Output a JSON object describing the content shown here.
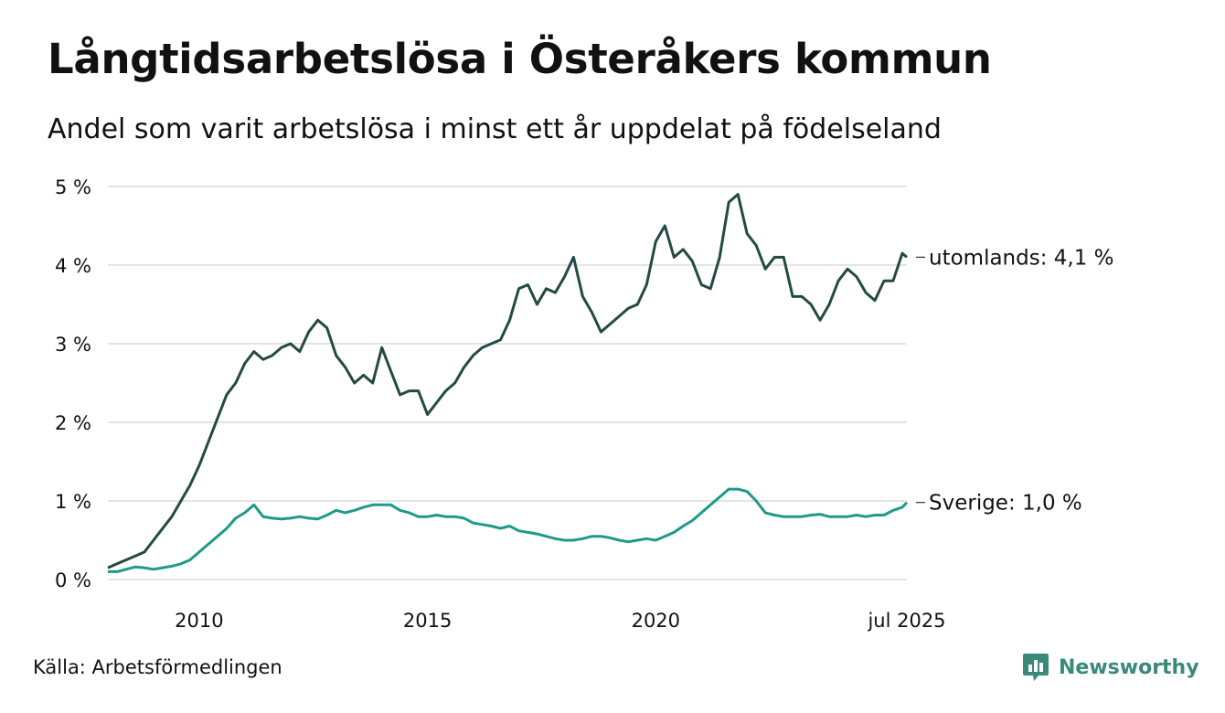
{
  "title": "Långtidsarbetslösa i Österåkers kommun",
  "subtitle": "Andel som varit arbetslösa i minst ett år uppdelat på födelseland",
  "source": "Källa: Arbetsförmedlingen",
  "brand": {
    "name": "Newsworthy",
    "logo_icon": "bar-chart-speech-bubble-icon",
    "color": "#3a8a7c"
  },
  "chart_data": {
    "type": "line",
    "x_unit": "year",
    "xlim": [
      2008.0,
      2025.5
    ],
    "ylim": [
      0,
      5
    ],
    "y_ticks": [
      0,
      1,
      2,
      3,
      4,
      5
    ],
    "y_tick_labels": [
      "0 %",
      "1 %",
      "2 %",
      "3 %",
      "4 %",
      "5 %"
    ],
    "x_ticks": [
      2010,
      2015,
      2020,
      2025.5
    ],
    "x_tick_labels": [
      "2010",
      "2015",
      "2020",
      "jul 2025"
    ],
    "grid": true,
    "series": [
      {
        "name": "utomlands",
        "end_label": "utomlands: 4,1 %",
        "color": "#234a44",
        "x": [
          2008.0,
          2008.2,
          2008.4,
          2008.6,
          2008.8,
          2009.0,
          2009.2,
          2009.4,
          2009.6,
          2009.8,
          2010.0,
          2010.2,
          2010.4,
          2010.6,
          2010.8,
          2011.0,
          2011.2,
          2011.4,
          2011.6,
          2011.8,
          2012.0,
          2012.2,
          2012.4,
          2012.6,
          2012.8,
          2013.0,
          2013.2,
          2013.4,
          2013.6,
          2013.8,
          2014.0,
          2014.2,
          2014.4,
          2014.6,
          2014.8,
          2015.0,
          2015.2,
          2015.4,
          2015.6,
          2015.8,
          2016.0,
          2016.2,
          2016.4,
          2016.6,
          2016.8,
          2017.0,
          2017.2,
          2017.4,
          2017.6,
          2017.8,
          2018.0,
          2018.2,
          2018.4,
          2018.6,
          2018.8,
          2019.0,
          2019.2,
          2019.4,
          2019.6,
          2019.8,
          2020.0,
          2020.2,
          2020.4,
          2020.6,
          2020.8,
          2021.0,
          2021.2,
          2021.4,
          2021.6,
          2021.8,
          2022.0,
          2022.2,
          2022.4,
          2022.6,
          2022.8,
          2023.0,
          2023.2,
          2023.4,
          2023.6,
          2023.8,
          2024.0,
          2024.2,
          2024.4,
          2024.6,
          2024.8,
          2025.0,
          2025.2,
          2025.4,
          2025.5
        ],
        "y": [
          0.15,
          0.2,
          0.25,
          0.3,
          0.35,
          0.5,
          0.65,
          0.8,
          1.0,
          1.2,
          1.45,
          1.75,
          2.05,
          2.35,
          2.5,
          2.75,
          2.9,
          2.8,
          2.85,
          2.95,
          3.0,
          2.9,
          3.15,
          3.3,
          3.2,
          2.85,
          2.7,
          2.5,
          2.6,
          2.5,
          2.95,
          2.65,
          2.35,
          2.4,
          2.4,
          2.1,
          2.25,
          2.4,
          2.5,
          2.7,
          2.85,
          2.95,
          3.0,
          3.05,
          3.3,
          3.7,
          3.75,
          3.5,
          3.7,
          3.65,
          3.85,
          4.1,
          3.6,
          3.4,
          3.15,
          3.25,
          3.35,
          3.45,
          3.5,
          3.75,
          4.3,
          4.5,
          4.1,
          4.2,
          4.05,
          3.75,
          3.7,
          4.1,
          4.8,
          4.9,
          4.4,
          4.25,
          3.95,
          4.1,
          4.1,
          3.6,
          3.6,
          3.5,
          3.3,
          3.5,
          3.8,
          3.95,
          3.85,
          3.65,
          3.55,
          3.8,
          3.8,
          4.15,
          4.1
        ]
      },
      {
        "name": "Sverige",
        "end_label": "Sverige: 1,0 %",
        "color": "#1e9a8a",
        "x": [
          2008.0,
          2008.2,
          2008.4,
          2008.6,
          2008.8,
          2009.0,
          2009.2,
          2009.4,
          2009.6,
          2009.8,
          2010.0,
          2010.2,
          2010.4,
          2010.6,
          2010.8,
          2011.0,
          2011.2,
          2011.4,
          2011.6,
          2011.8,
          2012.0,
          2012.2,
          2012.4,
          2012.6,
          2012.8,
          2013.0,
          2013.2,
          2013.4,
          2013.6,
          2013.8,
          2014.0,
          2014.2,
          2014.4,
          2014.6,
          2014.8,
          2015.0,
          2015.2,
          2015.4,
          2015.6,
          2015.8,
          2016.0,
          2016.2,
          2016.4,
          2016.6,
          2016.8,
          2017.0,
          2017.2,
          2017.4,
          2017.6,
          2017.8,
          2018.0,
          2018.2,
          2018.4,
          2018.6,
          2018.8,
          2019.0,
          2019.2,
          2019.4,
          2019.6,
          2019.8,
          2020.0,
          2020.2,
          2020.4,
          2020.6,
          2020.8,
          2021.0,
          2021.2,
          2021.4,
          2021.6,
          2021.8,
          2022.0,
          2022.2,
          2022.4,
          2022.6,
          2022.8,
          2023.0,
          2023.2,
          2023.4,
          2023.6,
          2023.8,
          2024.0,
          2024.2,
          2024.4,
          2024.6,
          2024.8,
          2025.0,
          2025.2,
          2025.4,
          2025.5
        ],
        "y": [
          0.1,
          0.1,
          0.13,
          0.16,
          0.15,
          0.13,
          0.15,
          0.17,
          0.2,
          0.25,
          0.35,
          0.45,
          0.55,
          0.65,
          0.78,
          0.85,
          0.95,
          0.8,
          0.78,
          0.77,
          0.78,
          0.8,
          0.78,
          0.77,
          0.82,
          0.88,
          0.85,
          0.88,
          0.92,
          0.95,
          0.95,
          0.95,
          0.88,
          0.85,
          0.8,
          0.8,
          0.82,
          0.8,
          0.8,
          0.78,
          0.72,
          0.7,
          0.68,
          0.65,
          0.68,
          0.62,
          0.6,
          0.58,
          0.55,
          0.52,
          0.5,
          0.5,
          0.52,
          0.55,
          0.55,
          0.53,
          0.5,
          0.48,
          0.5,
          0.52,
          0.5,
          0.55,
          0.6,
          0.68,
          0.75,
          0.85,
          0.95,
          1.05,
          1.15,
          1.15,
          1.12,
          1.0,
          0.85,
          0.82,
          0.8,
          0.8,
          0.8,
          0.82,
          0.83,
          0.8,
          0.8,
          0.8,
          0.82,
          0.8,
          0.82,
          0.82,
          0.88,
          0.92,
          0.98
        ]
      }
    ]
  }
}
